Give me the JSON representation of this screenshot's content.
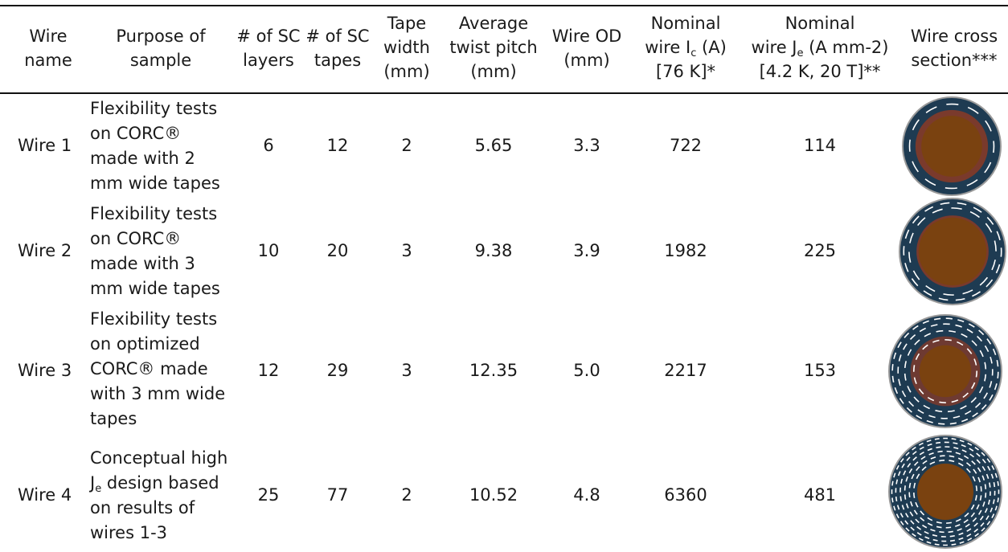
{
  "header": {
    "wire_name": [
      "Wire",
      "name"
    ],
    "purpose": [
      "Purpose of",
      "sample"
    ],
    "sc_layers": [
      "# of SC",
      "layers"
    ],
    "sc_tapes": [
      "# of SC",
      "tapes"
    ],
    "tape_width": [
      "Tape",
      "width",
      "(mm)"
    ],
    "twist_pitch": [
      "Average",
      "twist pitch",
      "(mm)"
    ],
    "wire_od": [
      "Wire OD",
      "(mm)"
    ],
    "ic": {
      "l1": "Nominal",
      "l2a": "wire I",
      "l2sub": "c",
      "l2b": " (A)",
      "l3": "[76 K]*"
    },
    "je": {
      "l1": "Nominal",
      "l2a": "wire J",
      "l2sub": "e",
      "l2b": " (A mm-2)",
      "l3": "[4.2 K, 20 T]**"
    },
    "cross_section": [
      "Wire cross",
      "section***"
    ]
  },
  "rows": [
    {
      "name": "Wire 1",
      "purpose": [
        "Flexibility tests",
        "on CORC®",
        "made with 2",
        "mm wide tapes"
      ],
      "sc_layers": "6",
      "sc_tapes": "12",
      "tape_width": "2",
      "twist_pitch": "5.65",
      "wire_od": "3.3",
      "ic": "722",
      "je": "114",
      "xsec": {
        "core_color": "#7a4210",
        "inner_ring_color": "#7a3a2c",
        "outer_ring_color": "#1e3b52",
        "edge_color": "#9a9a9a"
      }
    },
    {
      "name": "Wire 2",
      "purpose": [
        "Flexibility tests",
        "on CORC®",
        "made with 3",
        "mm wide tapes"
      ],
      "sc_layers": "10",
      "sc_tapes": "20",
      "tape_width": "3",
      "twist_pitch": "9.38",
      "wire_od": "3.9",
      "ic": "1982",
      "je": "225",
      "xsec": {
        "core_color": "#7a4210",
        "inner_ring_color": "#7a3a2c",
        "outer_ring_color": "#1e3b52",
        "edge_color": "#9a9a9a"
      }
    },
    {
      "name": "Wire 3",
      "purpose": [
        "Flexibility tests",
        "on optimized",
        "CORC® made",
        "with 3 mm wide",
        "tapes"
      ],
      "sc_layers": "12",
      "sc_tapes": "29",
      "tape_width": "3",
      "twist_pitch": "12.35",
      "wire_od": "5.0",
      "ic": "2217",
      "je": "153",
      "xsec": {
        "core_color": "#7a4210",
        "inner_ring_color": "#6e3a32",
        "outer_ring_color": "#1e3b52",
        "edge_color": "#9a9a9a"
      }
    },
    {
      "name": "Wire 4",
      "purpose_l1": "Conceptual high",
      "purpose_l2a": "J",
      "purpose_l2sub": "e",
      "purpose_l2b": " design based",
      "purpose_l3": "on results of",
      "purpose_l4": "wires 1-3",
      "sc_layers": "25",
      "sc_tapes": "77",
      "tape_width": "2",
      "twist_pitch": "10.52",
      "wire_od": "4.8",
      "ic": "6360",
      "je": "481",
      "xsec": {
        "core_color": "#7a4210",
        "inner_ring_color": "#1e3b52",
        "outer_ring_color": "#1e3b52",
        "edge_color": "#9a9a9a"
      }
    }
  ]
}
